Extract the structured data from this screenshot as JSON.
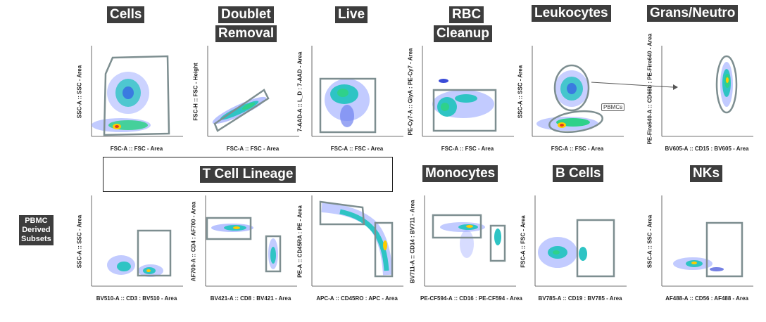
{
  "titles": {
    "cells": "Cells",
    "doublet": "Doublet",
    "removal": "Removal",
    "live": "Live",
    "rbc": "RBC",
    "cleanup": "Cleanup",
    "leukocytes": "Leukocytes",
    "grans": "Grans/Neutro",
    "tcell": "T Cell Lineage",
    "mono": "Monocytes",
    "bcells": "B Cells",
    "nks": "NKs",
    "pbmc_derived": [
      "PBMC",
      "Derived",
      "Subsets"
    ]
  },
  "gate_labels": {
    "pbmcs": "PBMCs"
  },
  "plots": {
    "cells": {
      "xlabel": "FSC-A :: FSC - Area",
      "ylabel": "SSC-A :: SSC - Area"
    },
    "doublet": {
      "xlabel": "FSC-A :: FSC - Area",
      "ylabel": "FSC-H :: FSC - Height"
    },
    "live": {
      "xlabel": "FSC-A :: FSC - Area",
      "ylabel": "7-AAD-A :: L_D : 7-AAD - Area"
    },
    "rbc": {
      "xlabel": "FSC-A :: FSC - Area",
      "ylabel": "PE-Cy7-A :: GlyA : PE-Cy7 - Area"
    },
    "leuko": {
      "xlabel": "FSC-A :: FSC - Area",
      "ylabel": "SSC-A :: SSC - Area"
    },
    "grans": {
      "xlabel": "BV605-A :: CD15 : BV605 - Area",
      "ylabel": "PE-Fire640-A :: CD66b : PE-Fire640 - Area"
    },
    "cd3": {
      "xlabel": "BV510-A :: CD3 : BV510 - Area",
      "ylabel": "SSC-A :: SSC - Area"
    },
    "cd8": {
      "xlabel": "BV421-A :: CD8 : BV421 - Area",
      "ylabel": "AF700-A :: CD4 : AF700 - Area"
    },
    "cd45": {
      "xlabel": "APC-A :: CD45RO : APC - Area",
      "ylabel": "PE-A :: CD45RA : PE - Area"
    },
    "mono": {
      "xlabel": "PE-CF594-A :: CD16 : PE-CF594 - Area",
      "ylabel": "BV711-A :: CD14 : BV711 - Area"
    },
    "bcell": {
      "xlabel": "BV785-A :: CD19 : BV785 - Area",
      "ylabel": "FSC-A :: FSC - Area"
    },
    "nk": {
      "xlabel": "AF488-A :: CD56 : AF488 - Area",
      "ylabel": "SSC-A :: SSC - Area"
    }
  },
  "colors": {
    "title_bg": "#3d3d3d",
    "gate": "#7d8e90",
    "dots": "#3a4bd8"
  }
}
